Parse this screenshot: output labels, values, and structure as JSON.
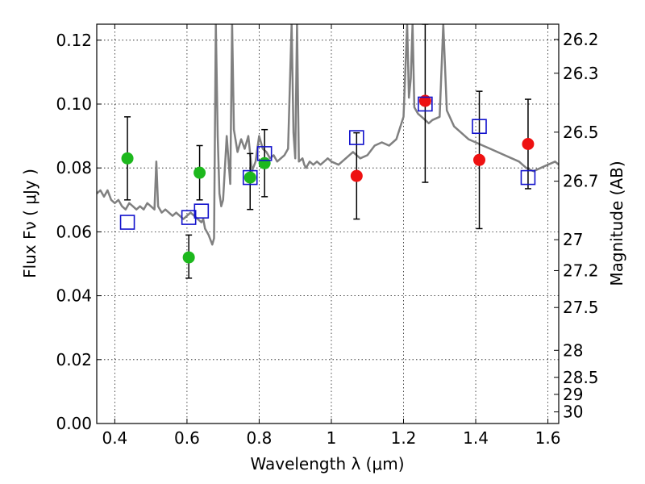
{
  "chart_data": {
    "type": "scatter",
    "title": "",
    "xlabel": "Wavelength  λ (μm)",
    "ylabel": "Flux  Fν  ( μJy )",
    "y2label": "Magnitude (AB)",
    "xlim": [
      0.35,
      1.63
    ],
    "ylim": [
      0.0,
      0.125
    ],
    "x_ticks": [
      {
        "value": 0.4,
        "label": "0.4"
      },
      {
        "value": 0.6,
        "label": "0.6"
      },
      {
        "value": 0.8,
        "label": "0.8"
      },
      {
        "value": 1.0,
        "label": "1"
      },
      {
        "value": 1.2,
        "label": "1.2"
      },
      {
        "value": 1.4,
        "label": "1.4"
      },
      {
        "value": 1.6,
        "label": "1.6"
      }
    ],
    "y_ticks": [
      {
        "value": 0.0,
        "label": "0.00"
      },
      {
        "value": 0.02,
        "label": "0.02"
      },
      {
        "value": 0.04,
        "label": "0.04"
      },
      {
        "value": 0.06,
        "label": "0.06"
      },
      {
        "value": 0.08,
        "label": "0.08"
      },
      {
        "value": 0.1,
        "label": "0.10"
      },
      {
        "value": 0.12,
        "label": "0.12"
      }
    ],
    "y2_ticks": [
      {
        "mag": 26.2,
        "label": "26.2"
      },
      {
        "mag": 26.3,
        "label": "26.3"
      },
      {
        "mag": 26.5,
        "label": "26.5"
      },
      {
        "mag": 26.7,
        "label": "26.7"
      },
      {
        "mag": 27.0,
        "label": "27"
      },
      {
        "mag": 27.2,
        "label": "27.2"
      },
      {
        "mag": 27.5,
        "label": "27.5"
      },
      {
        "mag": 28.0,
        "label": "28"
      },
      {
        "mag": 28.5,
        "label": "28.5"
      },
      {
        "mag": 29.0,
        "label": "29"
      },
      {
        "mag": 30.0,
        "label": "30"
      }
    ],
    "grid": true,
    "colors": {
      "model": "#808080",
      "green": "#1db81d",
      "red": "#ee1111",
      "square": "#1111cc",
      "errorbar": "#000000"
    },
    "series": [
      {
        "kind": "line",
        "color": "model",
        "x": [
          0.35,
          0.36,
          0.37,
          0.38,
          0.39,
          0.4,
          0.41,
          0.42,
          0.43,
          0.44,
          0.45,
          0.46,
          0.47,
          0.48,
          0.49,
          0.5,
          0.51,
          0.515,
          0.52,
          0.53,
          0.54,
          0.55,
          0.56,
          0.57,
          0.58,
          0.59,
          0.6,
          0.61,
          0.62,
          0.63,
          0.64,
          0.645,
          0.65,
          0.66,
          0.67,
          0.675,
          0.68,
          0.685,
          0.69,
          0.695,
          0.7,
          0.71,
          0.72,
          0.725,
          0.73,
          0.74,
          0.75,
          0.76,
          0.77,
          0.78,
          0.79,
          0.8,
          0.81,
          0.82,
          0.83,
          0.84,
          0.85,
          0.86,
          0.87,
          0.88,
          0.89,
          0.895,
          0.9,
          0.905,
          0.91,
          0.92,
          0.925,
          0.93,
          0.94,
          0.95,
          0.96,
          0.97,
          0.98,
          0.99,
          1.0,
          1.02,
          1.04,
          1.06,
          1.08,
          1.1,
          1.12,
          1.14,
          1.16,
          1.18,
          1.2,
          1.21,
          1.215,
          1.22,
          1.225,
          1.23,
          1.24,
          1.25,
          1.26,
          1.27,
          1.28,
          1.3,
          1.31,
          1.32,
          1.34,
          1.36,
          1.38,
          1.4,
          1.42,
          1.44,
          1.46,
          1.48,
          1.5,
          1.52,
          1.54,
          1.56,
          1.58,
          1.6,
          1.62,
          1.63
        ],
        "y": [
          0.072,
          0.073,
          0.071,
          0.073,
          0.07,
          0.069,
          0.07,
          0.068,
          0.067,
          0.069,
          0.068,
          0.067,
          0.068,
          0.067,
          0.069,
          0.068,
          0.067,
          0.082,
          0.068,
          0.066,
          0.067,
          0.066,
          0.065,
          0.066,
          0.065,
          0.064,
          0.065,
          0.066,
          0.065,
          0.064,
          0.063,
          0.064,
          0.061,
          0.059,
          0.056,
          0.058,
          0.125,
          0.09,
          0.072,
          0.068,
          0.07,
          0.09,
          0.075,
          0.125,
          0.092,
          0.085,
          0.089,
          0.086,
          0.09,
          0.079,
          0.082,
          0.09,
          0.086,
          0.085,
          0.083,
          0.084,
          0.082,
          0.083,
          0.084,
          0.086,
          0.125,
          0.091,
          0.083,
          0.125,
          0.082,
          0.083,
          0.081,
          0.08,
          0.082,
          0.081,
          0.082,
          0.081,
          0.082,
          0.083,
          0.082,
          0.081,
          0.083,
          0.085,
          0.083,
          0.084,
          0.087,
          0.088,
          0.087,
          0.089,
          0.096,
          0.125,
          0.102,
          0.108,
          0.125,
          0.099,
          0.097,
          0.096,
          0.095,
          0.094,
          0.095,
          0.096,
          0.125,
          0.098,
          0.093,
          0.091,
          0.089,
          0.088,
          0.087,
          0.086,
          0.085,
          0.084,
          0.083,
          0.082,
          0.08,
          0.079,
          0.08,
          0.081,
          0.082,
          0.081
        ]
      },
      {
        "kind": "points-with-errors",
        "marker": "circle",
        "color": "green",
        "points": [
          {
            "x": 0.435,
            "y": 0.083,
            "ylo": 0.07,
            "yhi": 0.096
          },
          {
            "x": 0.605,
            "y": 0.052,
            "ylo": 0.0455,
            "yhi": 0.059
          },
          {
            "x": 0.635,
            "y": 0.0785,
            "ylo": 0.07,
            "yhi": 0.087
          },
          {
            "x": 0.775,
            "y": 0.077,
            "ylo": 0.067,
            "yhi": 0.0845
          },
          {
            "x": 0.815,
            "y": 0.0815,
            "ylo": 0.071,
            "yhi": 0.092
          }
        ]
      },
      {
        "kind": "points-with-errors",
        "marker": "circle",
        "color": "red",
        "points": [
          {
            "x": 1.07,
            "y": 0.0775,
            "ylo": 0.064,
            "yhi": 0.091
          },
          {
            "x": 1.26,
            "y": 0.101,
            "ylo": 0.0755,
            "yhi": 0.125
          },
          {
            "x": 1.41,
            "y": 0.0825,
            "ylo": 0.061,
            "yhi": 0.104
          },
          {
            "x": 1.545,
            "y": 0.0875,
            "ylo": 0.0735,
            "yhi": 0.1015
          }
        ]
      },
      {
        "kind": "points",
        "marker": "square",
        "color": "square",
        "points": [
          {
            "x": 0.435,
            "y": 0.063
          },
          {
            "x": 0.605,
            "y": 0.0645
          },
          {
            "x": 0.64,
            "y": 0.0665
          },
          {
            "x": 0.775,
            "y": 0.077
          },
          {
            "x": 0.815,
            "y": 0.0845
          },
          {
            "x": 1.07,
            "y": 0.0895
          },
          {
            "x": 1.26,
            "y": 0.1
          },
          {
            "x": 1.41,
            "y": 0.093
          },
          {
            "x": 1.545,
            "y": 0.077
          }
        ]
      }
    ]
  }
}
